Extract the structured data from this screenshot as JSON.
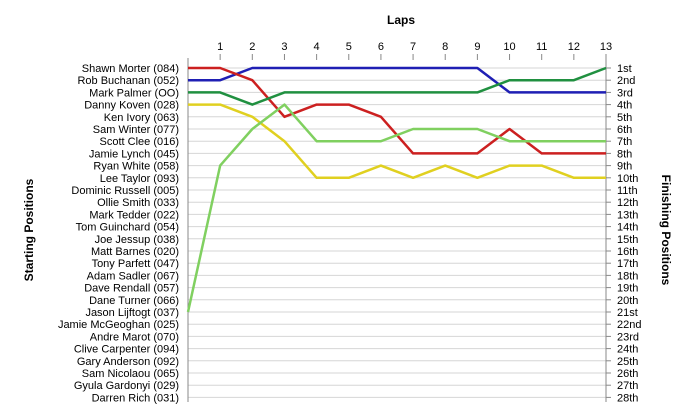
{
  "chart_data": {
    "type": "line",
    "title": "Laps",
    "ylabel_left": "Starting Positions",
    "ylabel_right": "Finishing Positions",
    "laps": [
      0,
      1,
      2,
      3,
      4,
      5,
      6,
      7,
      8,
      9,
      10,
      11,
      12,
      13
    ],
    "lap_labels": [
      "1",
      "2",
      "3",
      "4",
      "5",
      "6",
      "7",
      "8",
      "9",
      "10",
      "11",
      "12",
      "13"
    ],
    "position_labels": [
      "1st",
      "2nd",
      "3rd",
      "4th",
      "5th",
      "6th",
      "7th",
      "8th",
      "9th",
      "10th",
      "11th",
      "12th",
      "13th",
      "14th",
      "15th",
      "16th",
      "17th",
      "18th",
      "19th",
      "20th",
      "21st",
      "22nd",
      "23rd",
      "24th",
      "25th",
      "26th",
      "27th",
      "28th"
    ],
    "drivers": [
      "Shawn Morter (084)",
      "Rob Buchanan (052)",
      "Mark Palmer (OO)",
      "Danny Koven (028)",
      "Ken Ivory (063)",
      "Sam Winter (077)",
      "Scott Clee (016)",
      "Jamie Lynch (045)",
      "Ryan White (058)",
      "Lee Taylor (093)",
      "Dominic Russell (005)",
      "Ollie Smith (033)",
      "Mark Tedder (022)",
      "Tom Guinchard (054)",
      "Joe Jessup (038)",
      "Matt Barnes (020)",
      "Tony Parfett (047)",
      "Adam Sadler (067)",
      "Dave Rendall (057)",
      "Dane Turner (066)",
      "Jason Lijftogt (037)",
      "Jamie McGeoghan (025)",
      "Andre Marot (070)",
      "Clive Carpenter (094)",
      "Gary Anderson (092)",
      "Sam Nicolaou (065)",
      "Gyula Gardonyi (029)",
      "Darren Rich (031)"
    ],
    "series": [
      {
        "color": "#1f1fb4",
        "positions": [
          2,
          2,
          1,
          1,
          1,
          1,
          1,
          1,
          1,
          1,
          3,
          3,
          3,
          3
        ]
      },
      {
        "color": "#cc2020",
        "positions": [
          1,
          1,
          2,
          5,
          4,
          4,
          5,
          8,
          8,
          8,
          6,
          8,
          8,
          8
        ]
      },
      {
        "color": "#209040",
        "positions": [
          3,
          3,
          4,
          3,
          3,
          3,
          3,
          3,
          3,
          3,
          2,
          2,
          2,
          1
        ]
      },
      {
        "color": "#e0d020",
        "positions": [
          4,
          4,
          5,
          7,
          10,
          10,
          9,
          10,
          9,
          10,
          9,
          9,
          10,
          10
        ]
      },
      {
        "color": "#80d060",
        "positions": [
          21,
          9,
          6,
          4,
          7,
          7,
          7,
          6,
          6,
          6,
          7,
          7,
          7,
          7
        ]
      }
    ],
    "grid": "horizontal",
    "legend": "none"
  }
}
